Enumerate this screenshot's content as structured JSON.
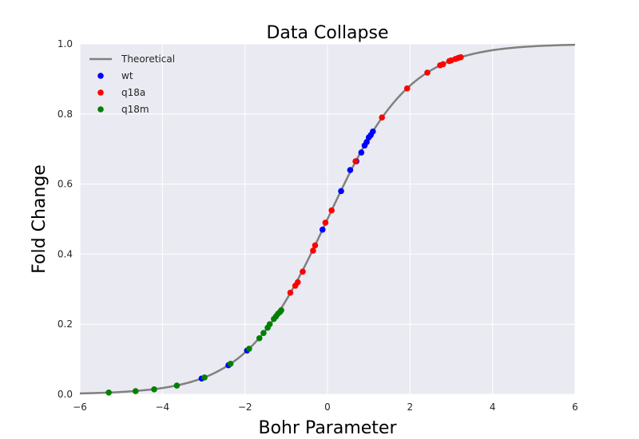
{
  "chart_data": {
    "type": "scatter",
    "title": "Data Collapse",
    "xlabel": "Bohr Parameter",
    "ylabel": "Fold Change",
    "xlim": [
      -6,
      6
    ],
    "ylim": [
      0,
      1
    ],
    "xticks": [
      -6,
      -4,
      -2,
      0,
      2,
      4,
      6
    ],
    "yticks": [
      0.0,
      0.2,
      0.4,
      0.6,
      0.8,
      1.0
    ],
    "xtick_labels": [
      "−6",
      "−4",
      "−2",
      "0",
      "2",
      "4",
      "6"
    ],
    "ytick_labels": [
      "0.0",
      "0.2",
      "0.4",
      "0.6",
      "0.8",
      "1.0"
    ],
    "grid": true,
    "legend_position": "top-left",
    "background_color": "#eaeaf2",
    "theory": {
      "name": "Theoretical",
      "color": "#808080",
      "function": "1/(1+exp(-x))"
    },
    "series": [
      {
        "name": "wt",
        "color": "#0000ff",
        "x": [
          -3.05,
          -2.4,
          -1.95,
          -0.12,
          0.33,
          0.55,
          0.7,
          0.82,
          0.9,
          0.95,
          1.0,
          1.05,
          1.1
        ],
        "y": [
          0.045,
          0.083,
          0.125,
          0.47,
          0.58,
          0.64,
          0.665,
          0.69,
          0.71,
          0.72,
          0.733,
          0.74,
          0.75
        ]
      },
      {
        "name": "q18a",
        "color": "#ff0000",
        "x": [
          -0.9,
          -0.78,
          -0.72,
          -0.6,
          -0.35,
          -0.3,
          -0.05,
          0.1,
          0.68,
          1.32,
          1.93,
          2.42,
          2.73,
          2.8,
          2.95,
          3.0,
          3.1,
          3.17,
          3.23
        ],
        "y": [
          0.29,
          0.31,
          0.32,
          0.35,
          0.41,
          0.425,
          0.49,
          0.525,
          0.665,
          0.79,
          0.873,
          0.918,
          0.939,
          0.942,
          0.951,
          0.953,
          0.957,
          0.96,
          0.962
        ]
      },
      {
        "name": "q18m",
        "color": "#008000",
        "x": [
          -5.3,
          -4.65,
          -4.2,
          -3.65,
          -2.98,
          -2.35,
          -1.9,
          -1.65,
          -1.55,
          -1.45,
          -1.4,
          -1.3,
          -1.25,
          -1.2,
          -1.15,
          -1.12
        ],
        "y": [
          0.005,
          0.009,
          0.014,
          0.025,
          0.048,
          0.087,
          0.13,
          0.16,
          0.175,
          0.19,
          0.2,
          0.215,
          0.222,
          0.23,
          0.235,
          0.24
        ]
      }
    ]
  }
}
